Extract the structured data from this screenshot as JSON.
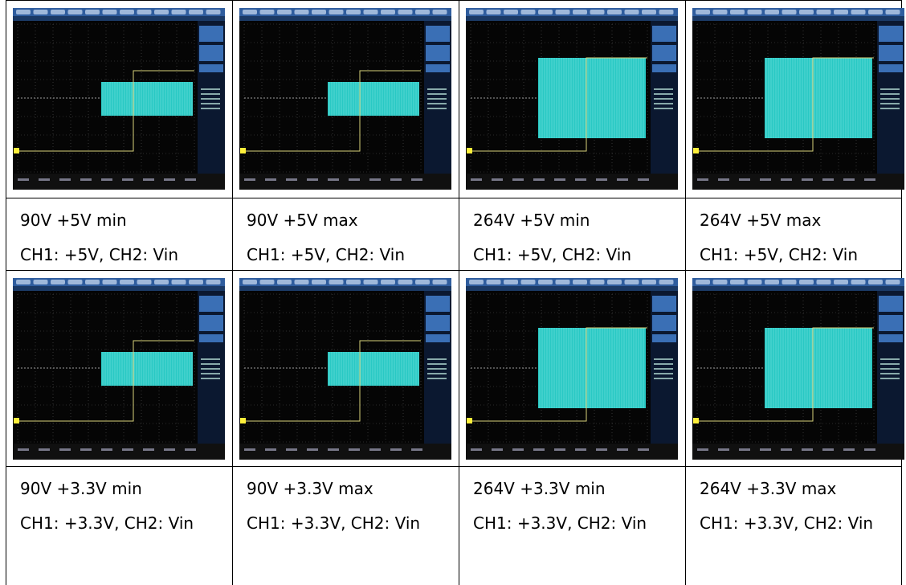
{
  "table": {
    "caption_rows": [
      [
        [
          "90V +5V min",
          "CH1: +5V, CH2: Vin"
        ],
        [
          "90V +5V max",
          "CH1: +5V, CH2: Vin"
        ],
        [
          "264V +5V min",
          "CH1: +5V, CH2: Vin"
        ],
        [
          "264V +5V max",
          "CH1: +5V, CH2: Vin"
        ]
      ],
      [
        [
          "90V +3.3V min",
          "CH1: +3.3V, CH2: Vin"
        ],
        [
          "90V +3.3V max",
          "CH1: +3.3V, CH2: Vin"
        ],
        [
          "264V +3.3V min",
          "CH1: +3.3V, CH2: Vin"
        ],
        [
          "264V +3.3V max",
          "CH1: +3.3V, CH2: Vin"
        ]
      ]
    ]
  }
}
